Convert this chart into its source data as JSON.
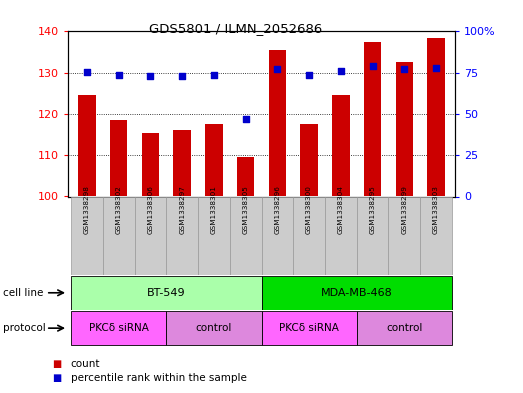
{
  "title": "GDS5801 / ILMN_2052686",
  "samples": [
    "GSM1338298",
    "GSM1338302",
    "GSM1338306",
    "GSM1338297",
    "GSM1338301",
    "GSM1338305",
    "GSM1338296",
    "GSM1338300",
    "GSM1338304",
    "GSM1338295",
    "GSM1338299",
    "GSM1338303"
  ],
  "counts": [
    124.5,
    118.5,
    115.5,
    116.0,
    117.5,
    109.5,
    135.5,
    117.5,
    124.5,
    137.5,
    132.5,
    138.5
  ],
  "percentiles": [
    75.5,
    73.5,
    73.0,
    73.0,
    73.5,
    47.0,
    77.0,
    73.5,
    76.0,
    79.0,
    77.5,
    78.0
  ],
  "ylim_left": [
    100,
    140
  ],
  "ylim_right": [
    0,
    100
  ],
  "yticks_left": [
    100,
    110,
    120,
    130,
    140
  ],
  "yticks_right": [
    0,
    25,
    50,
    75,
    100
  ],
  "ytick_labels_right": [
    "0",
    "25",
    "50",
    "75",
    "100%"
  ],
  "bar_color": "#cc0000",
  "dot_color": "#0000cc",
  "bar_bottom": 100,
  "cell_lines": [
    {
      "label": "BT-549",
      "start": 0,
      "end": 6,
      "color": "#aaffaa"
    },
    {
      "label": "MDA-MB-468",
      "start": 6,
      "end": 12,
      "color": "#00dd00"
    }
  ],
  "protocols": [
    {
      "label": "PKCδ siRNA",
      "start": 0,
      "end": 3,
      "color": "#ff66ff"
    },
    {
      "label": "control",
      "start": 3,
      "end": 6,
      "color": "#dd88dd"
    },
    {
      "label": "PKCδ siRNA",
      "start": 6,
      "end": 9,
      "color": "#ff66ff"
    },
    {
      "label": "control",
      "start": 9,
      "end": 12,
      "color": "#dd88dd"
    }
  ],
  "legend_count_label": "count",
  "legend_percentile_label": "percentile rank within the sample",
  "cell_line_label": "cell line",
  "protocol_label": "protocol",
  "sample_bg_color": "#cccccc",
  "sample_edge_color": "#999999"
}
